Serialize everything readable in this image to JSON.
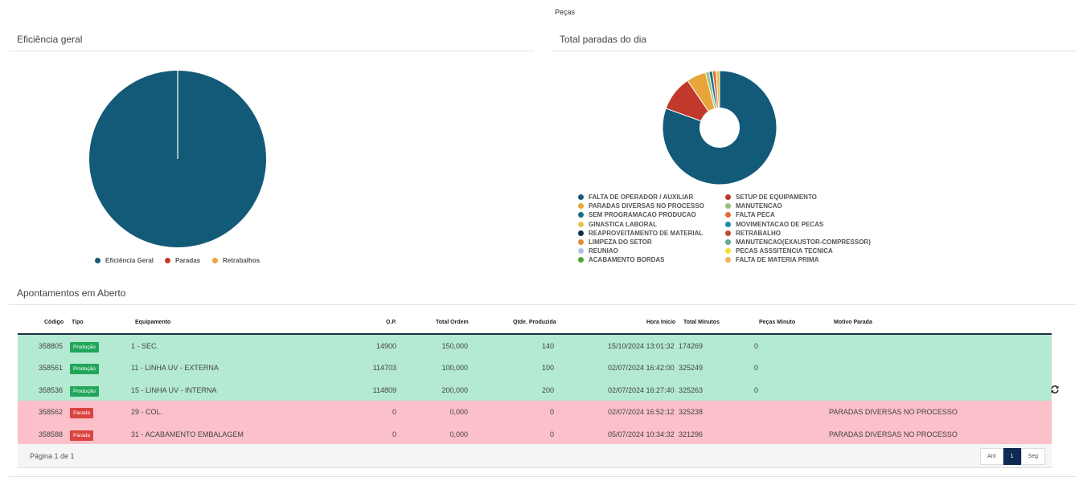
{
  "header": {
    "top_label": "Peças"
  },
  "efficiency_panel": {
    "title": "Eficiência geral",
    "legend": [
      {
        "label": "Eficiência Geral",
        "color": "#135a78"
      },
      {
        "label": "Paradas",
        "color": "#c0392b"
      },
      {
        "label": "Retrabalhos",
        "color": "#e8a63a"
      }
    ]
  },
  "stops_panel": {
    "title": "Total paradas do dia",
    "legend": [
      {
        "label": "FALTA DE OPERADOR / AUXILIAR",
        "color": "#135a78"
      },
      {
        "label": "PARADAS DIVERSAS NO PROCESSO",
        "color": "#e8a63a"
      },
      {
        "label": "SEM PROGRAMACAO PRODUCAO",
        "color": "#16708a"
      },
      {
        "label": "GINASTICA LABORAL",
        "color": "#e7c34a"
      },
      {
        "label": "REAPROVEITAMENTO DE MATERIAL",
        "color": "#0d2f44"
      },
      {
        "label": "LIMPEZA DO SETOR",
        "color": "#e68a37"
      },
      {
        "label": "REUNIAO",
        "color": "#a9c4e8"
      },
      {
        "label": "ACABAMENTO BORDAS",
        "color": "#4caa2a"
      },
      {
        "label": "SETUP DE EQUIPAMENTO",
        "color": "#c0392b"
      },
      {
        "label": "MANUTENCAO",
        "color": "#9bbf80"
      },
      {
        "label": "FALTA PECA",
        "color": "#e8693a"
      },
      {
        "label": "MOVIMENTACAO DE PECAS",
        "color": "#1a8ca8"
      },
      {
        "label": "RETRABALHO",
        "color": "#c44a2c"
      },
      {
        "label": "MANUTENCAO(EXAUSTOR-COMPRESSOR)",
        "color": "#5fa89a"
      },
      {
        "label": "PECAS ASSSITENCIA TECNICA",
        "color": "#f0e32a"
      },
      {
        "label": "FALTA DE MATERIA PRIMA",
        "color": "#f0b25a"
      }
    ]
  },
  "chart_data": [
    {
      "type": "pie",
      "title": "Eficiência geral",
      "labels": [
        "Eficiência Geral",
        "Paradas",
        "Retrabalhos"
      ],
      "values": [
        100,
        0,
        0
      ]
    },
    {
      "type": "pie",
      "title": "Total paradas do dia",
      "labels": [
        "FALTA DE OPERADOR / AUXILIAR",
        "SETUP DE EQUIPAMENTO",
        "PARADAS DIVERSAS NO PROCESSO",
        "MANUTENCAO",
        "SEM PROGRAMACAO PRODUCAO",
        "FALTA PECA",
        "GINASTICA LABORAL"
      ],
      "values": [
        80.5,
        10,
        5.5,
        1,
        1,
        1,
        1
      ]
    }
  ],
  "table": {
    "title": "Apontamentos em Aberto",
    "columns": {
      "codigo": "Código",
      "tipo": "Tipo",
      "equipamento": "Equipamento",
      "op": "O.P.",
      "total_ordem": "Total Ordem",
      "qtde": "Qtde. Produzida",
      "hora_inicio": "Hora Início",
      "total_minutos": "Total Minutos",
      "pecas_minuto": "Peças Minuto",
      "motivo": "Motivo Parada"
    },
    "rows": [
      {
        "status": "prod",
        "codigo": "358805",
        "tipo": "Produção",
        "equipamento": "1 - SEC.",
        "op": "14900",
        "total_ordem": "150,000",
        "qtde": "140",
        "hora_inicio": "15/10/2024 13:01:32",
        "total_minutos": "174269",
        "pecas_minuto": "0",
        "motivo": ""
      },
      {
        "status": "prod",
        "codigo": "358561",
        "tipo": "Produção",
        "equipamento": "11 - LINHA UV - EXTERNA",
        "op": "114703",
        "total_ordem": "100,000",
        "qtde": "100",
        "hora_inicio": "02/07/2024 16:42:00",
        "total_minutos": "325249",
        "pecas_minuto": "0",
        "motivo": ""
      },
      {
        "status": "prod",
        "codigo": "358536",
        "tipo": "Produção",
        "equipamento": "15 - LINHA UV - INTERNA",
        "op": "114809",
        "total_ordem": "200,000",
        "qtde": "200",
        "hora_inicio": "02/07/2024 16:27:40",
        "total_minutos": "325263",
        "pecas_minuto": "0",
        "motivo": ""
      },
      {
        "status": "stop",
        "codigo": "358562",
        "tipo": "Parada",
        "equipamento": "29 - COL.",
        "op": "0",
        "total_ordem": "0,000",
        "qtde": "0",
        "hora_inicio": "02/07/2024 16:52:12",
        "total_minutos": "325238",
        "pecas_minuto": "",
        "motivo": "PARADAS DIVERSAS NO PROCESSO"
      },
      {
        "status": "stop",
        "codigo": "358588",
        "tipo": "Parada",
        "equipamento": "31 - ACABAMENTO EMBALAGEM",
        "op": "0",
        "total_ordem": "0,000",
        "qtde": "0",
        "hora_inicio": "05/07/2024 10:34:32",
        "total_minutos": "321296",
        "pecas_minuto": "",
        "motivo": "PARADAS DIVERSAS NO PROCESSO"
      }
    ],
    "footer": {
      "page_info": "Página 1 de 1",
      "prev": "Ant",
      "current": "1",
      "next": "Seg"
    }
  }
}
